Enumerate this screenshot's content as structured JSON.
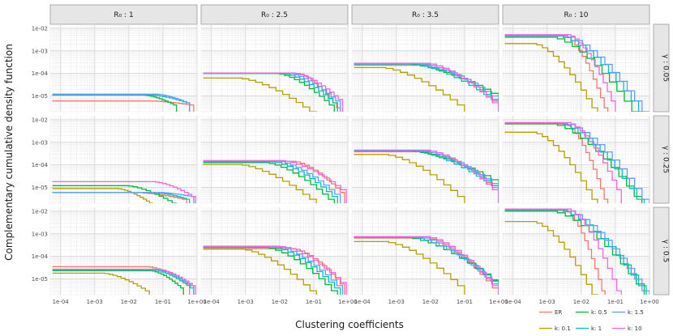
{
  "chart_data": {
    "type": "line",
    "subtype": "step-ccdf-facet-grid",
    "xlabel": "Clustering coefficients",
    "ylabel": "Complementary cumulative density function",
    "x_scale": "log10",
    "y_scale": "log10",
    "xlim": [
      5e-05,
      1
    ],
    "ylim": [
      2e-06,
      0.015
    ],
    "x_ticks": [
      "1e-04",
      "1e-03",
      "1e-02",
      "1e-01",
      "1e+00"
    ],
    "y_ticks": [
      "1e-05",
      "1e-04",
      "1e-03",
      "1e-02"
    ],
    "columns": [
      "R₀ : 1",
      "R₀ : 2.5",
      "R₀ : 3.5",
      "R₀ : 10"
    ],
    "rows": [
      "γ : 0.05",
      "γ : 0.25",
      "γ : 0.5"
    ],
    "legend": [
      {
        "name": "ER",
        "color": "#F8766D"
      },
      {
        "name": "k: 0.1",
        "color": "#B79F00"
      },
      {
        "name": "k: 0.5",
        "color": "#00BA38"
      },
      {
        "name": "k: 1",
        "color": "#00BFC4"
      },
      {
        "name": "k: 1.5",
        "color": "#619CFF"
      },
      {
        "name": "k: 10",
        "color": "#F564E3"
      }
    ],
    "series_note": "Per panel, each series is a step function: y0 = plateau CCDF value, x1 = clustering coefficient where decay begins, x2 = value where the curve ends, yEnd = last CCDF value reached.",
    "panels": [
      {
        "row": 0,
        "col": 0,
        "series": [
          {
            "name": "ER",
            "y0": 6e-06,
            "x1": 0.05,
            "x2": 0.8,
            "yEnd": 4e-06
          },
          {
            "name": "k: 0.5",
            "y0": 1.1e-05,
            "x1": 0.03,
            "x2": 0.25,
            "yEnd": 4e-06
          },
          {
            "name": "k: 1",
            "y0": 1.1e-05,
            "x1": 0.05,
            "x2": 0.6,
            "yEnd": 5e-06
          },
          {
            "name": "k: 1.5",
            "y0": 1.2e-05,
            "x1": 0.07,
            "x2": 0.6,
            "yEnd": 5e-06
          }
        ]
      },
      {
        "row": 0,
        "col": 1,
        "series": [
          {
            "name": "ER",
            "y0": 0.0001,
            "x1": 0.04,
            "x2": 0.6,
            "yEnd": 3e-06
          },
          {
            "name": "k: 0.1",
            "y0": 6.2e-05,
            "x1": 0.0008,
            "x2": 0.12,
            "yEnd": 2e-06
          },
          {
            "name": "k: 0.5",
            "y0": 0.0001,
            "x1": 0.01,
            "x2": 0.4,
            "yEnd": 4e-06
          },
          {
            "name": "k: 1",
            "y0": 0.0001,
            "x1": 0.015,
            "x2": 0.5,
            "yEnd": 5e-06
          },
          {
            "name": "k: 1.5",
            "y0": 0.000105,
            "x1": 0.02,
            "x2": 0.6,
            "yEnd": 6e-06
          },
          {
            "name": "k: 10",
            "y0": 0.000105,
            "x1": 0.03,
            "x2": 0.7,
            "yEnd": 7e-06
          }
        ]
      },
      {
        "row": 0,
        "col": 2,
        "series": [
          {
            "name": "ER",
            "y0": 0.00023,
            "x1": 0.01,
            "x2": 1,
            "yEnd": 6e-06
          },
          {
            "name": "k: 0.1",
            "y0": 0.00018,
            "x1": 0.0005,
            "x2": 0.1,
            "yEnd": 4e-06
          },
          {
            "name": "k: 0.5",
            "y0": 0.00026,
            "x1": 0.003,
            "x2": 1,
            "yEnd": 1.3e-05
          },
          {
            "name": "k: 1",
            "y0": 0.00026,
            "x1": 0.004,
            "x2": 1,
            "yEnd": 7e-06
          },
          {
            "name": "k: 1.5",
            "y0": 0.00027,
            "x1": 0.006,
            "x2": 1,
            "yEnd": 1e-05
          },
          {
            "name": "k: 10",
            "y0": 0.00028,
            "x1": 0.01,
            "x2": 1,
            "yEnd": 5e-06
          }
        ]
      },
      {
        "row": 0,
        "col": 3,
        "series": [
          {
            "name": "ER",
            "y0": 0.0045,
            "x1": 0.004,
            "x2": 0.06,
            "yEnd": 3e-06
          },
          {
            "name": "k: 0.1",
            "y0": 0.0021,
            "x1": 0.0005,
            "x2": 0.03,
            "yEnd": 3e-06
          },
          {
            "name": "k: 0.5",
            "y0": 0.004,
            "x1": 0.002,
            "x2": 0.5,
            "yEnd": 2e-06
          },
          {
            "name": "k: 1",
            "y0": 0.0046,
            "x1": 0.003,
            "x2": 0.8,
            "yEnd": 2e-06
          },
          {
            "name": "k: 1.5",
            "y0": 0.0048,
            "x1": 0.004,
            "x2": 1,
            "yEnd": 2e-06
          },
          {
            "name": "k: 10",
            "y0": 0.0052,
            "x1": 0.005,
            "x2": 0.1,
            "yEnd": 6e-06
          }
        ]
      },
      {
        "row": 1,
        "col": 0,
        "series": [
          {
            "name": "ER",
            "y0": 6e-06,
            "x1": 0.02,
            "x2": 0.5,
            "yEnd": 3e-06
          },
          {
            "name": "k: 0.1",
            "y0": 9e-06,
            "x1": 0.005,
            "x2": 0.05,
            "yEnd": 2e-06
          },
          {
            "name": "k: 0.5",
            "y0": 1.2e-05,
            "x1": 0.01,
            "x2": 0.25,
            "yEnd": 2e-06
          },
          {
            "name": "k: 1",
            "y0": 6e-06,
            "x1": 0.06,
            "x2": 0.6,
            "yEnd": 3e-06
          },
          {
            "name": "k: 1.5",
            "y0": 6e-06,
            "x1": 0.08,
            "x2": 0.8,
            "yEnd": 4e-06
          },
          {
            "name": "k: 10",
            "y0": 1.8e-05,
            "x1": 0.06,
            "x2": 0.9,
            "yEnd": 4e-06
          }
        ]
      },
      {
        "row": 1,
        "col": 1,
        "series": [
          {
            "name": "ER",
            "y0": 0.000145,
            "x1": 0.03,
            "x2": 0.8,
            "yEnd": 6e-06
          },
          {
            "name": "k: 0.1",
            "y0": 0.000105,
            "x1": 0.0008,
            "x2": 0.12,
            "yEnd": 3e-06
          },
          {
            "name": "k: 0.5",
            "y0": 0.000125,
            "x1": 0.005,
            "x2": 0.4,
            "yEnd": 3e-06
          },
          {
            "name": "k: 1",
            "y0": 0.000135,
            "x1": 0.008,
            "x2": 0.5,
            "yEnd": 4e-06
          },
          {
            "name": "k: 1.5",
            "y0": 0.00015,
            "x1": 0.01,
            "x2": 0.6,
            "yEnd": 5e-06
          },
          {
            "name": "k: 10",
            "y0": 0.000155,
            "x1": 0.015,
            "x2": 0.9,
            "yEnd": 8e-06
          }
        ]
      },
      {
        "row": 1,
        "col": 2,
        "series": [
          {
            "name": "ER",
            "y0": 0.00038,
            "x1": 0.01,
            "x2": 1,
            "yEnd": 1e-05
          },
          {
            "name": "k: 0.1",
            "y0": 0.00029,
            "x1": 0.0006,
            "x2": 0.1,
            "yEnd": 4e-06
          },
          {
            "name": "k: 0.5",
            "y0": 0.00043,
            "x1": 0.003,
            "x2": 1,
            "yEnd": 2.2e-05
          },
          {
            "name": "k: 1",
            "y0": 0.00042,
            "x1": 0.004,
            "x2": 1,
            "yEnd": 1.2e-05
          },
          {
            "name": "k: 1.5",
            "y0": 0.00044,
            "x1": 0.006,
            "x2": 1,
            "yEnd": 1.5e-05
          },
          {
            "name": "k: 10",
            "y0": 0.00045,
            "x1": 0.01,
            "x2": 1,
            "yEnd": 8e-06
          }
        ]
      },
      {
        "row": 1,
        "col": 3,
        "series": [
          {
            "name": "ER",
            "y0": 0.0065,
            "x1": 0.004,
            "x2": 0.06,
            "yEnd": 3e-06
          },
          {
            "name": "k: 0.1",
            "y0": 0.0028,
            "x1": 0.0005,
            "x2": 0.03,
            "yEnd": 3e-06
          },
          {
            "name": "k: 0.5",
            "y0": 0.0066,
            "x1": 0.002,
            "x2": 0.6,
            "yEnd": 4e-06
          },
          {
            "name": "k: 1",
            "y0": 0.007,
            "x1": 0.003,
            "x2": 0.7,
            "yEnd": 3e-06
          },
          {
            "name": "k: 1.5",
            "y0": 0.0072,
            "x1": 0.004,
            "x2": 1,
            "yEnd": 3e-06
          },
          {
            "name": "k: 10",
            "y0": 0.0075,
            "x1": 0.005,
            "x2": 0.15,
            "yEnd": 8e-06
          }
        ]
      },
      {
        "row": 2,
        "col": 0,
        "series": [
          {
            "name": "ER",
            "y0": 3.5e-05,
            "x1": 0.04,
            "x2": 0.6,
            "yEnd": 6e-06
          },
          {
            "name": "k: 0.1",
            "y0": 1.8e-05,
            "x1": 0.002,
            "x2": 0.04,
            "yEnd": 3e-06
          },
          {
            "name": "k: 0.5",
            "y0": 2.3e-05,
            "x1": 0.05,
            "x2": 0.4,
            "yEnd": 4e-06
          },
          {
            "name": "k: 1",
            "y0": 2.5e-05,
            "x1": 0.06,
            "x2": 0.8,
            "yEnd": 4e-06
          },
          {
            "name": "k: 1.5",
            "y0": 2.6e-05,
            "x1": 0.08,
            "x2": 0.8,
            "yEnd": 5e-06
          },
          {
            "name": "k: 10",
            "y0": 2.7e-05,
            "x1": 0.08,
            "x2": 0.9,
            "yEnd": 5e-06
          }
        ]
      },
      {
        "row": 2,
        "col": 1,
        "series": [
          {
            "name": "ER",
            "y0": 0.00022,
            "x1": 0.03,
            "x2": 0.8,
            "yEnd": 6e-06
          },
          {
            "name": "k: 0.1",
            "y0": 0.00021,
            "x1": 0.001,
            "x2": 0.12,
            "yEnd": 3e-06
          },
          {
            "name": "k: 0.5",
            "y0": 0.00025,
            "x1": 0.005,
            "x2": 0.5,
            "yEnd": 3e-06
          },
          {
            "name": "k: 1",
            "y0": 0.00026,
            "x1": 0.008,
            "x2": 0.6,
            "yEnd": 4e-06
          },
          {
            "name": "k: 1.5",
            "y0": 0.00028,
            "x1": 0.01,
            "x2": 0.7,
            "yEnd": 5e-06
          },
          {
            "name": "k: 10",
            "y0": 0.00027,
            "x1": 0.015,
            "x2": 0.9,
            "yEnd": 7e-06
          }
        ]
      },
      {
        "row": 2,
        "col": 2,
        "series": [
          {
            "name": "ER",
            "y0": 0.00065,
            "x1": 0.01,
            "x2": 1,
            "yEnd": 4e-06
          },
          {
            "name": "k: 0.1",
            "y0": 0.00045,
            "x1": 0.0006,
            "x2": 0.1,
            "yEnd": 5e-06
          },
          {
            "name": "k: 0.5",
            "y0": 0.00068,
            "x1": 0.003,
            "x2": 1,
            "yEnd": 9e-06
          },
          {
            "name": "k: 1",
            "y0": 0.0007,
            "x1": 0.004,
            "x2": 1,
            "yEnd": 8e-06
          },
          {
            "name": "k: 1.5",
            "y0": 0.00072,
            "x1": 0.006,
            "x2": 1,
            "yEnd": 6e-06
          },
          {
            "name": "k: 10",
            "y0": 0.00075,
            "x1": 0.01,
            "x2": 1,
            "yEnd": 5e-06
          }
        ]
      },
      {
        "row": 2,
        "col": 3,
        "series": [
          {
            "name": "ER",
            "y0": 0.011,
            "x1": 0.004,
            "x2": 0.05,
            "yEnd": 3e-06
          },
          {
            "name": "k: 0.1",
            "y0": 0.0035,
            "x1": 0.0005,
            "x2": 0.03,
            "yEnd": 2e-06
          },
          {
            "name": "k: 0.5",
            "y0": 0.01,
            "x1": 0.002,
            "x2": 0.7,
            "yEnd": 6e-06
          },
          {
            "name": "k: 1",
            "y0": 0.0115,
            "x1": 0.003,
            "x2": 0.8,
            "yEnd": 5e-06
          },
          {
            "name": "k: 1.5",
            "y0": 0.012,
            "x1": 0.004,
            "x2": 1,
            "yEnd": 3e-06
          },
          {
            "name": "k: 10",
            "y0": 0.0125,
            "x1": 0.005,
            "x2": 0.15,
            "yEnd": 3e-06
          }
        ]
      }
    ]
  }
}
